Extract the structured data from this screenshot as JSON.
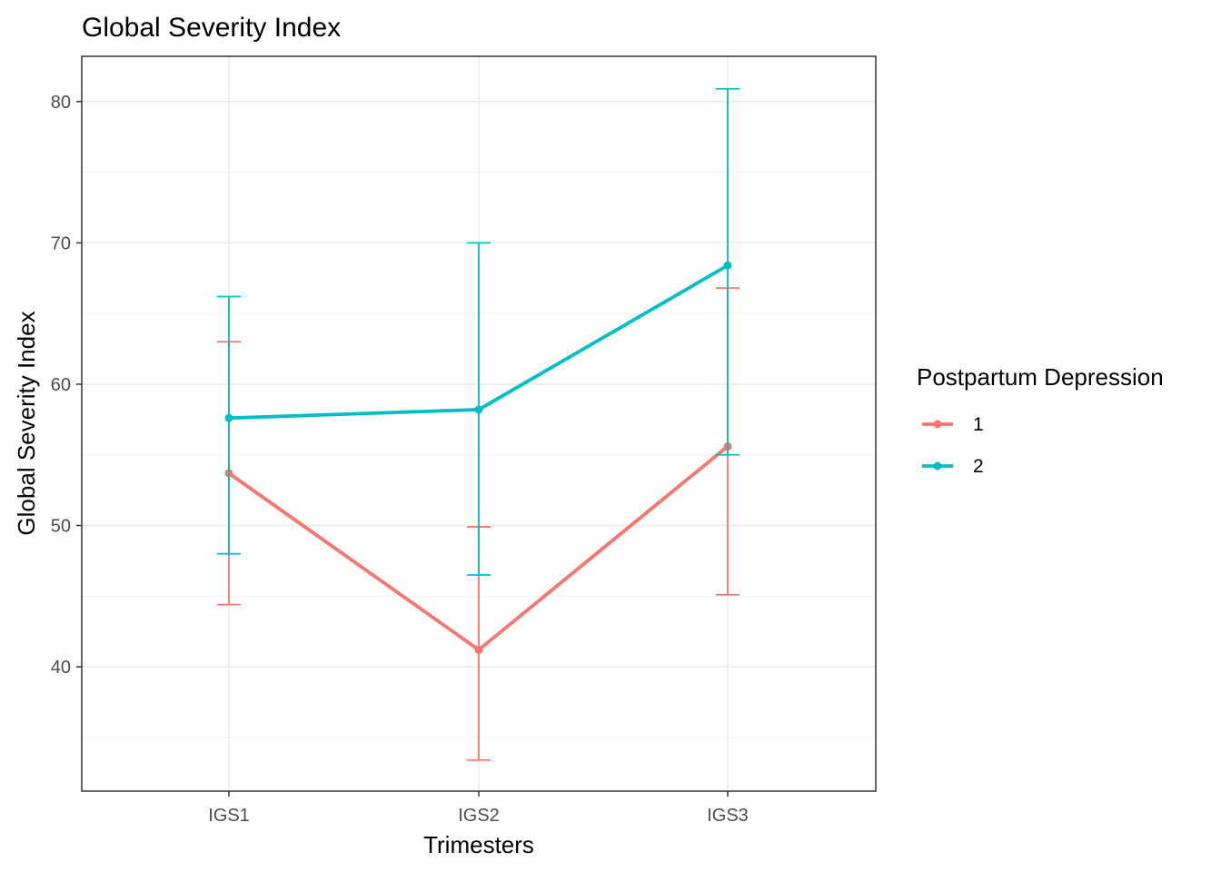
{
  "chart_data": {
    "type": "line",
    "title": "Global Severity Index",
    "xlabel": "Trimesters",
    "ylabel": "Global Severity Index",
    "categories": [
      "IGS1",
      "IGS2",
      "IGS3"
    ],
    "ylim": [
      31.2,
      83.2
    ],
    "yticks": [
      40,
      50,
      60,
      70,
      80
    ],
    "grid": true,
    "legend": {
      "title": "Postpartum Depression",
      "position": "right"
    },
    "series": [
      {
        "name": "1",
        "color": "#F8766D",
        "values": [
          53.7,
          41.2,
          55.6
        ],
        "lower": [
          44.4,
          33.4,
          45.1
        ],
        "upper": [
          63.0,
          49.9,
          66.8
        ]
      },
      {
        "name": "2",
        "color": "#00BFC4",
        "values": [
          57.6,
          58.2,
          68.4
        ],
        "lower": [
          48.0,
          46.5,
          55.0
        ],
        "upper": [
          66.2,
          70.0,
          80.9
        ]
      }
    ]
  }
}
